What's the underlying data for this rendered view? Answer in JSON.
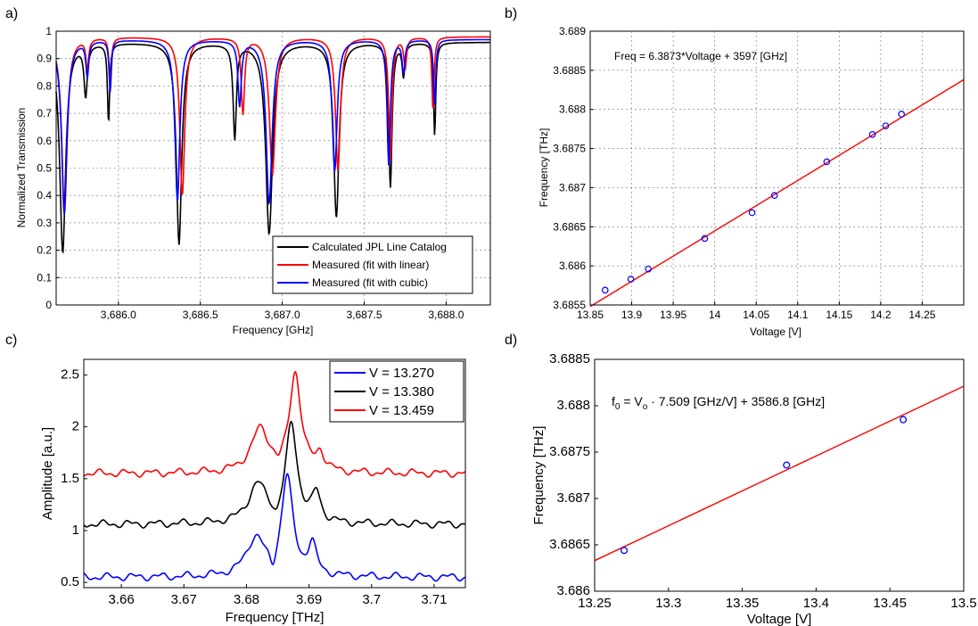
{
  "chart_data": [
    {
      "panel": "a)",
      "type": "line",
      "xlabel": "Frequency [GHz]",
      "ylabel": "Normalized Transmission",
      "xlim": [
        3685.62,
        3688.27
      ],
      "ylim": [
        0,
        1
      ],
      "xticks": [
        3686.0,
        3686.5,
        3687.0,
        3687.5,
        3688.0
      ],
      "xtick_labels": [
        "3,686.0",
        "3,686.5",
        "3,687.0",
        "3,687.5",
        "3,688.0"
      ],
      "yticks": [
        0,
        0.1,
        0.2,
        0.3,
        0.4,
        0.5,
        0.6,
        0.7,
        0.8,
        0.9,
        1
      ],
      "ytick_labels": [
        "0",
        "0.1",
        "0.2",
        "0.3",
        "0.4",
        "0.5",
        "0.6",
        "0.7",
        "0.8",
        "0.9",
        "1"
      ],
      "grid": true,
      "legend_position": "bottom-right",
      "series": [
        {
          "name": "Calculated JPL Line Catalog",
          "color": "#000000",
          "baseline": 0.96,
          "lines": [
            [
              3685.66,
              0.19,
              0.022
            ],
            [
              3685.8,
              0.77,
              0.012
            ],
            [
              3685.94,
              0.67,
              0.008
            ],
            [
              3686.37,
              0.22,
              0.02
            ],
            [
              3686.71,
              0.61,
              0.012
            ],
            [
              3686.92,
              0.26,
              0.025
            ],
            [
              3687.33,
              0.32,
              0.02
            ],
            [
              3687.66,
              0.43,
              0.012
            ],
            [
              3687.74,
              0.84,
              0.01
            ],
            [
              3687.93,
              0.62,
              0.008
            ]
          ]
        },
        {
          "name": "Measured (fit with linear)",
          "color": "#ff0000",
          "baseline": 0.98,
          "lines": [
            [
              3685.67,
              0.34,
              0.02
            ],
            [
              3685.81,
              0.87,
              0.01
            ],
            [
              3685.95,
              0.8,
              0.008
            ],
            [
              3686.39,
              0.4,
              0.018
            ],
            [
              3686.76,
              0.7,
              0.012
            ],
            [
              3686.94,
              0.48,
              0.022
            ],
            [
              3687.34,
              0.49,
              0.018
            ],
            [
              3687.66,
              0.53,
              0.012
            ],
            [
              3687.75,
              0.87,
              0.01
            ],
            [
              3687.92,
              0.71,
              0.008
            ]
          ]
        },
        {
          "name": "Measured (fit with cubic)",
          "color": "#0000ff",
          "baseline": 0.97,
          "lines": [
            [
              3685.67,
              0.33,
              0.02
            ],
            [
              3685.81,
              0.84,
              0.01
            ],
            [
              3685.95,
              0.78,
              0.008
            ],
            [
              3686.36,
              0.38,
              0.018
            ],
            [
              3686.74,
              0.73,
              0.012
            ],
            [
              3686.92,
              0.37,
              0.022
            ],
            [
              3687.32,
              0.49,
              0.018
            ],
            [
              3687.65,
              0.51,
              0.012
            ],
            [
              3687.74,
              0.85,
              0.01
            ],
            [
              3687.93,
              0.73,
              0.008
            ]
          ]
        }
      ]
    },
    {
      "panel": "b)",
      "type": "scatter",
      "xlabel": "Voltage [V]",
      "ylabel": "Frequency [THz]",
      "annotation": "Freq = 6.3873*Voltage + 3597 [GHz]",
      "xlim": [
        13.85,
        14.3
      ],
      "ylim": [
        3.6855,
        3.689
      ],
      "xticks": [
        13.85,
        13.9,
        13.95,
        14,
        14.05,
        14.1,
        14.15,
        14.2,
        14.25
      ],
      "xtick_labels": [
        "13.85",
        "13.9",
        "13.95",
        "14",
        "14.05",
        "14.1",
        "14.15",
        "14.2",
        "14.25"
      ],
      "yticks": [
        3.6855,
        3.686,
        3.6865,
        3.687,
        3.6875,
        3.688,
        3.6885,
        3.689
      ],
      "ytick_labels": [
        "3.6855",
        "3.686",
        "3.6865",
        "3.687",
        "3.6875",
        "3.688",
        "3.6885",
        "3.689"
      ],
      "grid": true,
      "points": {
        "x": [
          13.868,
          13.899,
          13.92,
          13.988,
          14.045,
          14.072,
          14.135,
          14.19,
          14.206,
          14.225
        ],
        "y": [
          3.68569,
          3.68583,
          3.68596,
          3.68635,
          3.68668,
          3.6869,
          3.68733,
          3.68768,
          3.68779,
          3.68794
        ],
        "color": "#0000ff"
      },
      "fit": {
        "x": [
          13.85,
          14.3
        ],
        "y": [
          3.68548,
          3.68838
        ],
        "color": "#ff0000"
      }
    },
    {
      "panel": "c)",
      "type": "line",
      "xlabel": "Frequency [THz]",
      "ylabel": "Amplitude [a.u.]",
      "xlim": [
        3.654,
        3.715
      ],
      "ylim": [
        0.45,
        2.65
      ],
      "xticks": [
        3.66,
        3.67,
        3.68,
        3.69,
        3.7,
        3.71
      ],
      "xtick_labels": [
        "3.66",
        "3.67",
        "3.68",
        "3.69",
        "3.7",
        "3.71"
      ],
      "yticks": [
        0.5,
        1,
        1.5,
        2,
        2.5
      ],
      "ytick_labels": [
        "0.5",
        "1",
        "1.5",
        "2",
        "2.5"
      ],
      "grid": false,
      "legend_position": "top-right",
      "series": [
        {
          "name": "V = 13.270",
          "color": "#0000ff",
          "baseline": 0.55,
          "peak_x": 3.6865,
          "peak": 1.5,
          "side_x": 3.6815,
          "side": 0.92,
          "dip_x": 3.6842,
          "dip": 0.64,
          "lobe_x": 3.6905,
          "lobe": 0.84
        },
        {
          "name": "V = 13.380",
          "color": "#000000",
          "baseline": 1.06,
          "peak_x": 3.6872,
          "peak": 2.0,
          "side_x": 3.6818,
          "side": 1.43,
          "dip_x": 3.6848,
          "dip": 1.23,
          "lobe_x": 3.6912,
          "lobe": 1.33
        },
        {
          "name": "V = 13.459",
          "color": "#ff0000",
          "baseline": 1.55,
          "peak_x": 3.6878,
          "peak": 2.5,
          "side_x": 3.6822,
          "side": 1.96,
          "dip_x": 3.6852,
          "dip": 1.78,
          "lobe_x": 3.6918,
          "lobe": 1.72
        }
      ]
    },
    {
      "panel": "d)",
      "type": "scatter",
      "xlabel": "Voltage [V]",
      "ylabel": "Frequency [THz]",
      "annotation_parts": {
        "f": "f",
        "sub0": "0",
        "mid": " = V",
        "subo": "o",
        "rest": " · 7.509 [GHz/V] + 3586.8 [GHz]"
      },
      "xlim": [
        13.25,
        13.5
      ],
      "ylim": [
        3.686,
        3.6885
      ],
      "xticks": [
        13.25,
        13.3,
        13.35,
        13.4,
        13.45,
        13.5
      ],
      "xtick_labels": [
        "13.25",
        "13.3",
        "13.35",
        "13.4",
        "13.45",
        "13.5"
      ],
      "yticks": [
        3.686,
        3.6865,
        3.687,
        3.6875,
        3.688,
        3.6885
      ],
      "ytick_labels": [
        "3.686",
        "3.6865",
        "3.687",
        "3.6875",
        "3.688",
        "3.6885"
      ],
      "grid": false,
      "points": {
        "x": [
          13.27,
          13.38,
          13.459
        ],
        "y": [
          3.68644,
          3.68736,
          3.68785
        ],
        "color": "#0000ff"
      },
      "fit": {
        "x": [
          13.25,
          13.5
        ],
        "y": [
          3.68633,
          3.68821
        ],
        "color": "#ff0000"
      }
    }
  ]
}
